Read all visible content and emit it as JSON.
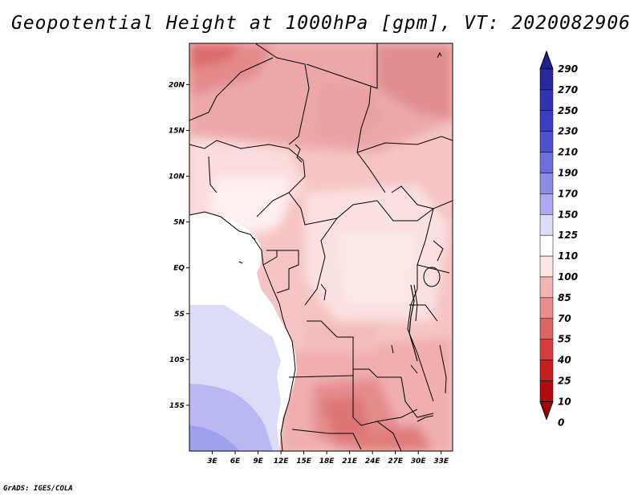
{
  "title": "Geopotential Height at 1000hPa [gpm], VT: 2020082906",
  "footer": "GrADS: IGES/COLA",
  "map": {
    "lon_labels": [
      "3E",
      "6E",
      "9E",
      "12E",
      "15E",
      "18E",
      "21E",
      "24E",
      "27E",
      "30E",
      "33E"
    ],
    "lat_labels": [
      "20N",
      "15N",
      "10N",
      "5N",
      "EQ",
      "5S",
      "10S",
      "15S"
    ],
    "lon_range": [
      0,
      34.5
    ],
    "lat_range": [
      -20,
      24.5
    ]
  },
  "colorbar": {
    "labels": [
      "290",
      "270",
      "250",
      "230",
      "210",
      "190",
      "170",
      "150",
      "125",
      "110",
      "100",
      "85",
      "70",
      "55",
      "40",
      "25",
      "10",
      "0"
    ],
    "colors": [
      "#1e1e8c",
      "#2828a0",
      "#3232b4",
      "#3c3cc8",
      "#5050d2",
      "#6e6edc",
      "#8c8ce6",
      "#aaaaf0",
      "#dcdcf8",
      "#ffffff",
      "#fde6e6",
      "#f5b4b4",
      "#e88c8c",
      "#e06464",
      "#d83c3c",
      "#c81e1e",
      "#b40a0a",
      "#a00000"
    ]
  }
}
